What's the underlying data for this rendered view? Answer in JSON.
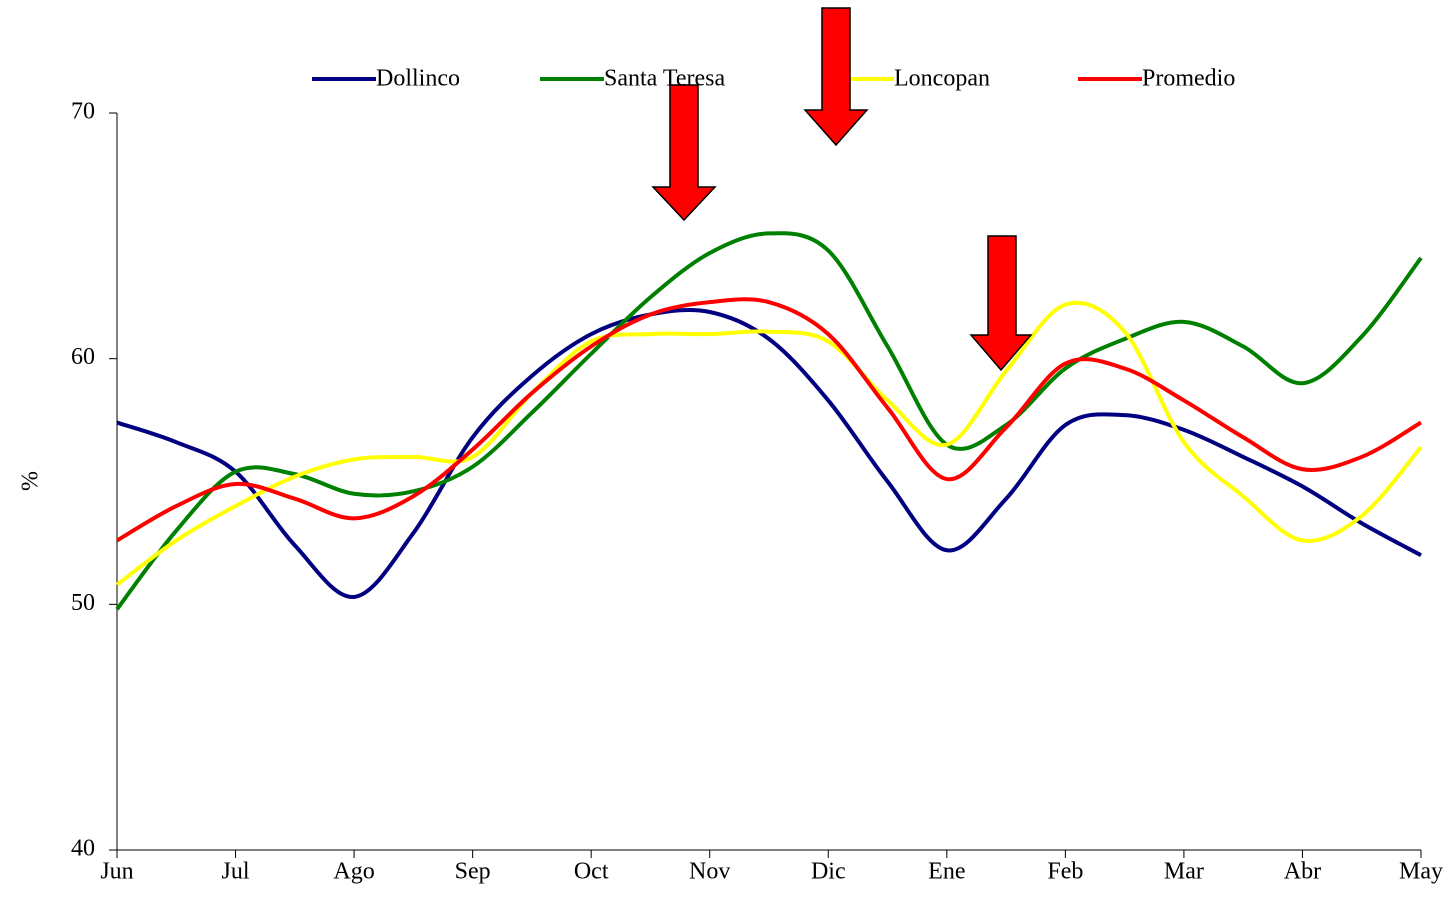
{
  "chart_data": {
    "type": "line",
    "y_label": "%",
    "categories": [
      "Jun",
      null,
      "Jul",
      null,
      "Ago",
      null,
      "Sep",
      null,
      "Oct",
      null,
      "Nov",
      null,
      "Dic",
      null,
      "Ene",
      null,
      "Feb",
      null,
      "Mar",
      null,
      "Abr",
      null,
      "May"
    ],
    "ylim": [
      40,
      70
    ],
    "yticks": [
      40,
      50,
      60,
      70
    ],
    "grid": false,
    "legend": "top",
    "series": [
      {
        "name": "Dollinco",
        "color": "#000080",
        "values": [
          57.4,
          56.6,
          55.4,
          52.4,
          50.3,
          52.9,
          56.8,
          59.3,
          61.0,
          61.8,
          61.9,
          60.8,
          58.3,
          55.0,
          52.2,
          54.3,
          57.3,
          57.7,
          57.1,
          56.0,
          54.8,
          53.3,
          52.0
        ]
      },
      {
        "name": "Santa Teresa",
        "color": "#008000",
        "values": [
          49.8,
          53.0,
          55.4,
          55.3,
          54.5,
          54.6,
          55.6,
          57.8,
          60.2,
          62.5,
          64.3,
          65.1,
          64.4,
          60.5,
          56.5,
          57.3,
          59.6,
          60.8,
          61.5,
          60.5,
          59.0,
          60.9,
          64.1
        ]
      },
      {
        "name": "Loncopan",
        "color": "#ffff00",
        "values": [
          50.8,
          52.6,
          54.0,
          55.2,
          55.9,
          56.0,
          56.0,
          58.6,
          60.7,
          61.0,
          61.0,
          61.1,
          60.7,
          58.3,
          56.5,
          59.5,
          62.2,
          61.1,
          56.6,
          54.4,
          52.6,
          53.6,
          56.4
        ]
      },
      {
        "name": "Promedio",
        "color": "#ff0000",
        "values": [
          52.6,
          54.0,
          54.9,
          54.3,
          53.5,
          54.4,
          56.3,
          58.6,
          60.5,
          61.8,
          62.3,
          62.3,
          61.0,
          58.0,
          55.1,
          57.2,
          59.8,
          59.6,
          58.3,
          56.8,
          55.5,
          56.0,
          57.4
        ]
      }
    ]
  }
}
